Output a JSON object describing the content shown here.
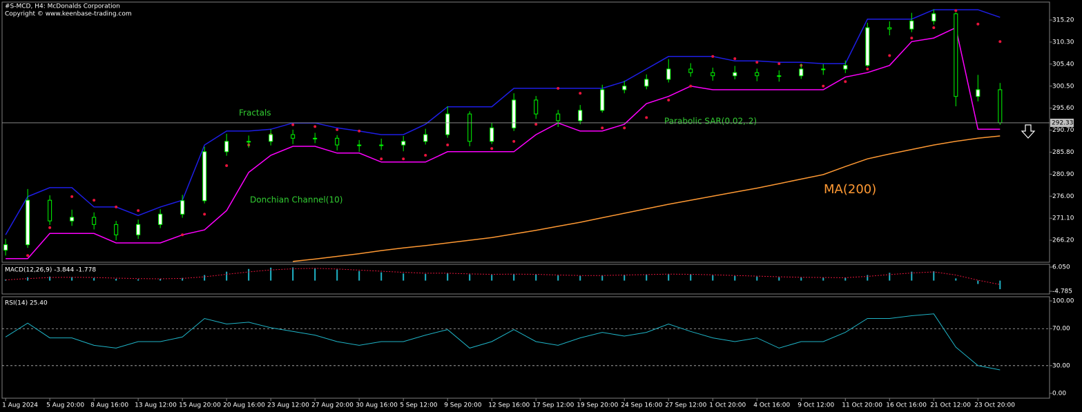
{
  "chart_data": [
    {
      "type": "candlestick",
      "title": "#S-MCD, H4:  McDonalds Corporation",
      "subtitle": "Copyright © www.keenbase-trading.com",
      "x": [
        0,
        5,
        10,
        15,
        20,
        25,
        30,
        35,
        40,
        45,
        50,
        55,
        60,
        65,
        70,
        75,
        80,
        85,
        90,
        95,
        100,
        105,
        110,
        115,
        120,
        125,
        130,
        135,
        140,
        145,
        150,
        155,
        160,
        165,
        170,
        175,
        180,
        185,
        190,
        195,
        200,
        205,
        210,
        215,
        220,
        225
      ],
      "xlim": [
        -0.8,
        236.2
      ],
      "open": [
        264.0,
        265.2,
        275.1,
        270.5,
        271.3,
        269.7,
        267.4,
        269.7,
        272.0,
        275.0,
        285.9,
        288.2,
        288.2,
        289.7,
        288.9,
        288.9,
        287.4,
        287.4,
        287.4,
        288.2,
        289.7,
        294.3,
        288.2,
        291.2,
        297.4,
        294.3,
        292.8,
        295.1,
        299.7,
        300.5,
        302.0,
        304.3,
        303.5,
        302.8,
        303.5,
        302.8,
        302.8,
        304.3,
        304.3,
        305.1,
        313.5,
        313.2,
        315.0,
        316.6,
        298.2,
        299.7
      ],
      "high": [
        266.5,
        277.6,
        276.2,
        273.0,
        272.4,
        270.5,
        270.8,
        273.1,
        276.3,
        287.0,
        289.9,
        289.5,
        290.9,
        290.8,
        290.1,
        289.6,
        288.5,
        288.8,
        289.4,
        291.0,
        296.0,
        294.9,
        292.3,
        298.9,
        298.3,
        295.2,
        296.3,
        300.8,
        301.7,
        303.1,
        306.5,
        305.6,
        304.6,
        305.0,
        304.4,
        304.0,
        305.5,
        305.4,
        306.2,
        314.6,
        314.9,
        316.8,
        317.6,
        316.9,
        303.0,
        301.2
      ],
      "low": [
        262.8,
        264.5,
        269.6,
        269.4,
        268.6,
        266.2,
        266.5,
        268.9,
        271.2,
        274.4,
        285.0,
        286.8,
        287.3,
        287.6,
        287.8,
        286.2,
        285.9,
        286.3,
        286.0,
        287.5,
        289.0,
        287.1,
        287.6,
        290.5,
        293.2,
        291.4,
        292.0,
        294.6,
        298.9,
        299.8,
        301.3,
        302.6,
        301.7,
        302.0,
        301.6,
        301.5,
        302.1,
        303.0,
        303.4,
        304.8,
        311.8,
        312.5,
        314.2,
        296.0,
        297.1,
        291.9
      ],
      "close": [
        265.2,
        275.1,
        270.5,
        271.3,
        269.7,
        267.4,
        269.7,
        272.0,
        275.0,
        285.9,
        288.2,
        288.2,
        289.7,
        288.9,
        288.9,
        287.4,
        287.4,
        287.4,
        288.2,
        289.7,
        294.3,
        288.2,
        291.2,
        297.4,
        294.3,
        292.8,
        295.1,
        299.7,
        300.5,
        302.0,
        304.3,
        303.5,
        302.8,
        303.5,
        302.8,
        302.8,
        304.3,
        304.3,
        305.1,
        313.5,
        313.2,
        315.0,
        316.6,
        298.2,
        299.7,
        292.33
      ],
      "candle_color": "#00ff00",
      "series": [
        {
          "style": "line",
          "color": "#1e1ee6",
          "values": [
            267.4,
            275.9,
            277.9,
            277.9,
            273.6,
            273.6,
            271.7,
            273.6,
            275.1,
            287.4,
            290.5,
            290.5,
            290.9,
            292.3,
            292.3,
            291.2,
            290.5,
            289.7,
            289.7,
            292.0,
            295.9,
            295.9,
            295.9,
            300.0,
            300.0,
            300.0,
            300.0,
            300.0,
            301.5,
            304.3,
            307.1,
            307.1,
            307.1,
            306.1,
            306.1,
            305.8,
            305.8,
            305.5,
            305.5,
            315.4,
            315.4,
            315.4,
            317.5,
            317.5,
            317.5,
            315.8
          ]
        },
        {
          "style": "line",
          "color": "#ff00ff",
          "values": [
            262.1,
            262.1,
            267.7,
            267.7,
            267.7,
            265.6,
            265.6,
            265.6,
            267.4,
            268.5,
            272.8,
            281.3,
            285.1,
            287.1,
            287.1,
            285.6,
            285.6,
            283.6,
            283.6,
            283.6,
            285.9,
            285.9,
            285.9,
            285.9,
            289.7,
            292.3,
            290.5,
            290.5,
            292.0,
            296.6,
            298.2,
            300.5,
            299.7,
            299.7,
            299.7,
            299.7,
            299.7,
            299.7,
            302.5,
            303.5,
            305.1,
            310.4,
            311.2,
            313.5,
            290.9,
            290.9
          ]
        },
        {
          "style": "dots",
          "color": "#e8143c",
          "values": [
            null,
            262.8,
            269.0,
            275.9,
            275.1,
            273.6,
            272.8,
            271.7,
            267.4,
            272.0,
            282.8,
            287.4,
            289.7,
            291.9,
            291.5,
            290.8,
            290.5,
            284.3,
            284.3,
            285.1,
            287.4,
            289.7,
            286.6,
            288.2,
            292.0,
            300.0,
            298.9,
            291.2,
            291.2,
            293.5,
            297.4,
            300.5,
            307.1,
            306.6,
            305.8,
            305.5,
            305.1,
            300.5,
            301.5,
            304.3,
            307.3,
            311.2,
            313.5,
            317.3,
            314.3,
            310.4
          ]
        },
        {
          "style": "line",
          "color": "#ff9933",
          "values": [
            null,
            null,
            null,
            null,
            null,
            null,
            null,
            null,
            null,
            null,
            null,
            null,
            null,
            261.5,
            262.0,
            262.6,
            263.2,
            263.9,
            264.5,
            265.0,
            265.6,
            266.2,
            266.8,
            267.6,
            268.4,
            269.3,
            270.2,
            271.2,
            272.2,
            273.2,
            274.2,
            275.1,
            276.0,
            276.9,
            277.8,
            278.8,
            279.8,
            280.8,
            282.6,
            284.3,
            285.4,
            286.4,
            287.4,
            288.2,
            288.9,
            289.4
          ]
        }
      ],
      "last_price": 292.33,
      "ylim": [
        261.3,
        319.2
      ],
      "yticks": [
        {
          "value": 315.2,
          "label": "315.20"
        },
        {
          "value": 310.3,
          "label": "310.30"
        },
        {
          "value": 305.4,
          "label": "305.40"
        },
        {
          "value": 300.5,
          "label": "300.50"
        },
        {
          "value": 295.6,
          "label": "295.60"
        },
        {
          "value": 290.7,
          "label": "290.70"
        },
        {
          "value": 285.8,
          "label": "285.80"
        },
        {
          "value": 280.9,
          "label": "280.90"
        },
        {
          "value": 276.0,
          "label": "276.00"
        },
        {
          "value": 271.1,
          "label": "271.10"
        },
        {
          "value": 266.2,
          "label": "266.20"
        }
      ],
      "annotations": [
        {
          "text": "Fractals"
        },
        {
          "text": "Donchian Channel(10)"
        },
        {
          "text": "Parabolic SAR(0.02,.2)"
        },
        {
          "text": "MA(200)"
        }
      ]
    },
    {
      "type": "histogram-line",
      "title": "MACD(12,26,9) -3.844 -1.778",
      "histogram": {
        "color": "#1fb5c8",
        "values": [
          0.5,
          1.5,
          1.8,
          1.6,
          1.2,
          0.8,
          0.6,
          0.8,
          1.2,
          2.5,
          4.0,
          5.2,
          5.8,
          5.9,
          5.6,
          5.0,
          4.3,
          3.7,
          3.2,
          3.0,
          3.3,
          2.8,
          2.6,
          3.0,
          2.7,
          2.3,
          2.1,
          2.4,
          2.6,
          2.8,
          3.0,
          2.8,
          2.4,
          2.1,
          1.8,
          1.5,
          1.4,
          1.3,
          1.3,
          2.5,
          3.5,
          4.0,
          4.2,
          1.0,
          -1.5,
          -3.844
        ]
      },
      "signal": {
        "color": "#e8143c",
        "values": [
          0.3,
          0.9,
          1.4,
          1.5,
          1.4,
          1.1,
          0.9,
          0.8,
          1.0,
          1.7,
          2.8,
          3.9,
          4.8,
          5.3,
          5.5,
          5.2,
          4.7,
          4.2,
          3.7,
          3.3,
          3.3,
          3.0,
          2.8,
          2.9,
          2.8,
          2.5,
          2.3,
          2.3,
          2.5,
          2.7,
          2.9,
          2.8,
          2.6,
          2.3,
          2.0,
          1.7,
          1.5,
          1.4,
          1.3,
          1.9,
          2.7,
          3.4,
          3.9,
          2.5,
          0.2,
          -1.778
        ]
      },
      "ylim": [
        -6.0,
        7.3
      ],
      "yticks": [
        {
          "value": 6.05,
          "label": "6.050"
        },
        -4.785
      ]
    },
    {
      "type": "line",
      "title": "RSI(14) 25.40",
      "series": [
        {
          "color": "#1fb5c8",
          "values": [
            61,
            76,
            60,
            60,
            52,
            49,
            56,
            56,
            61,
            81,
            75,
            77,
            71,
            67,
            63,
            56,
            52,
            56,
            56,
            63,
            69,
            49,
            56,
            69,
            56,
            52,
            60,
            66,
            62,
            66,
            75,
            67,
            60,
            56,
            60,
            49,
            56,
            56,
            66,
            81,
            81,
            84,
            86,
            50,
            30,
            25.4
          ]
        }
      ],
      "levels": [
        70,
        30
      ],
      "ylim": [
        -5.2,
        104.5
      ],
      "yticks": [
        {
          "value": 100,
          "label": "100.00"
        },
        {
          "value": 70,
          "label": "70.00"
        },
        {
          "value": 30,
          "label": "30.00"
        },
        {
          "value": 0,
          "label": "0.00"
        }
      ],
      "xticks": [
        {
          "value": 0,
          "label": "1 Aug 2024"
        },
        {
          "value": 10,
          "label": "5 Aug 20:00"
        },
        {
          "value": 20,
          "label": "8 Aug 16:00"
        },
        {
          "value": 30,
          "label": "13 Aug 12:00"
        },
        {
          "value": 40,
          "label": "15 Aug 20:00"
        },
        {
          "value": 50,
          "label": "20 Aug 16:00"
        },
        {
          "value": 60,
          "label": "23 Aug 12:00"
        },
        {
          "value": 70,
          "label": "27 Aug 20:00"
        },
        {
          "value": 80,
          "label": "30 Aug 16:00"
        },
        {
          "value": 90,
          "label": "5 Sep 12:00"
        },
        {
          "value": 100,
          "label": "9 Sep 20:00"
        },
        {
          "value": 110,
          "label": "12 Sep 16:00"
        },
        {
          "value": 120,
          "label": "17 Sep 12:00"
        },
        {
          "value": 130,
          "label": "19 Sep 20:00"
        },
        {
          "value": 140,
          "label": "24 Sep 16:00"
        },
        {
          "value": 150,
          "label": "27 Sep 12:00"
        },
        {
          "value": 160,
          "label": "1 Oct 20:00"
        },
        {
          "value": 170,
          "label": "4 Oct 16:00"
        },
        {
          "value": 180,
          "label": "9 Oct 12:00"
        },
        {
          "value": 190,
          "label": "11 Oct 20:00"
        },
        {
          "value": 200,
          "label": "16 Oct 16:00"
        },
        {
          "value": 210,
          "label": "21 Oct 12:00"
        },
        {
          "value": 220,
          "label": "23 Oct 20:00"
        }
      ]
    }
  ]
}
